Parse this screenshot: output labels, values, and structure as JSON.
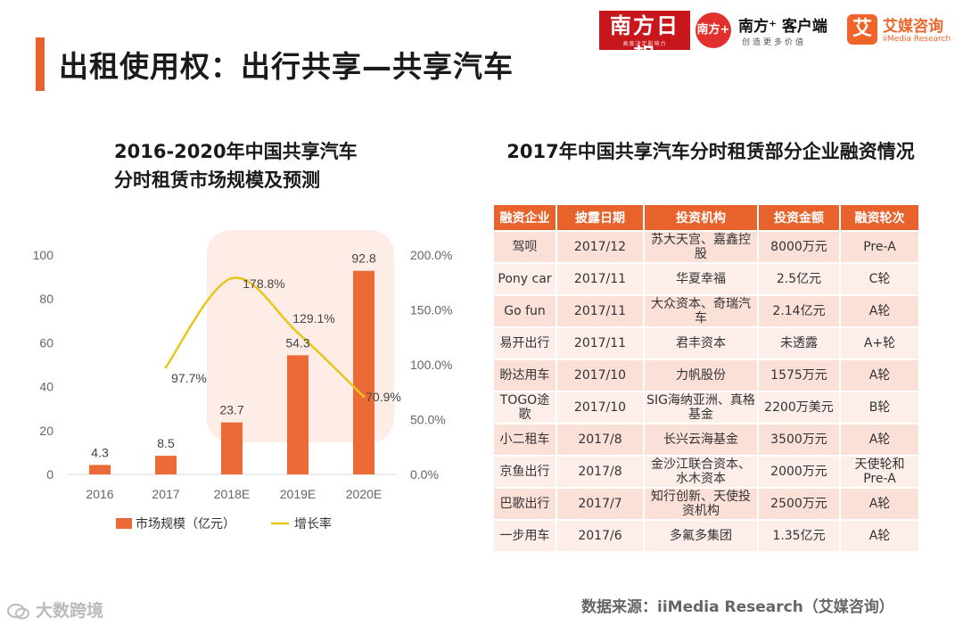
{
  "header": {
    "title": "出租使用权：出行共享—共享汽车"
  },
  "logos": {
    "nanfang_daily": "南方日報",
    "nanfang_daily_sub": "高度决定影响力",
    "nanfang_circle": "南方+",
    "nanfang_plus": "南方⁺ 客户端",
    "nanfang_plus_sub": "创造更多价值",
    "ai_badge": "艾",
    "ai_cn": "艾媒咨询",
    "ai_en": "iiMedia Research"
  },
  "chart": {
    "title_line1": "2016-2020年中国共享汽车",
    "title_line2": "分时租赁市场规模及预测"
  },
  "chart_data": {
    "type": "bar",
    "title": "2016-2020年中国共享汽车分时租赁市场规模及预测",
    "categories": [
      "2016",
      "2017",
      "2018E",
      "2019E",
      "2020E"
    ],
    "series": [
      {
        "name": "市场规模（亿元）",
        "type": "bar",
        "axis": "left",
        "values": [
          4.3,
          8.5,
          23.7,
          54.3,
          92.8
        ],
        "labels": [
          "4.3",
          "8.5",
          "23.7",
          "54.3",
          "92.8"
        ]
      },
      {
        "name": "增长率",
        "type": "line",
        "axis": "right",
        "values": [
          null,
          97.7,
          178.8,
          129.1,
          70.9
        ],
        "labels": [
          "",
          "97.7%",
          "178.8%",
          "129.1%",
          "70.9%"
        ]
      }
    ],
    "y_left": {
      "ticks": [
        "0",
        "20",
        "40",
        "60",
        "80",
        "100"
      ],
      "range": [
        0,
        100
      ]
    },
    "y_right": {
      "ticks": [
        "0.0%",
        "50.0%",
        "100.0%",
        "150.0%",
        "200.0%"
      ],
      "range": [
        0,
        200
      ]
    },
    "legend": [
      "市场规模（亿元）",
      "增长率"
    ],
    "colors": {
      "bar": "#ec6a35",
      "line": "#e8c61a"
    }
  },
  "table": {
    "title": "2017年中国共享汽车分时租赁部分企业融资情况",
    "headers": [
      "融资企业",
      "披露日期",
      "投资机构",
      "投资金额",
      "融资轮次"
    ],
    "rows": [
      [
        "驾呗",
        "2017/12",
        "苏大天宫、嘉鑫控股",
        "8000万元",
        "Pre-A"
      ],
      [
        "Pony car",
        "2017/11",
        "华夏幸福",
        "2.5亿元",
        "C轮"
      ],
      [
        "Go fun",
        "2017/11",
        "大众资本、奇瑞汽车",
        "2.14亿元",
        "A轮"
      ],
      [
        "易开出行",
        "2017/11",
        "君丰资本",
        "未透露",
        "A+轮"
      ],
      [
        "盼达用车",
        "2017/10",
        "力帆股份",
        "1575万元",
        "A轮"
      ],
      [
        "TOGO途歌",
        "2017/10",
        "SIG海纳亚洲、真格基金",
        "2200万美元",
        "B轮"
      ],
      [
        "小二租车",
        "2017/8",
        "长兴云海基金",
        "3500万元",
        "A轮"
      ],
      [
        "京鱼出行",
        "2017/8",
        "金沙江联合资本、水木资本",
        "2000万元",
        "天使轮和Pre-A"
      ],
      [
        "巴歌出行",
        "2017/7",
        "知行创新、天使投资机构",
        "2500万元",
        "A轮"
      ],
      [
        "一步用车",
        "2017/6",
        "多氟多集团",
        "1.35亿元",
        "A轮"
      ]
    ]
  },
  "footer": {
    "source": "数据来源：iiMedia Research（艾媒咨询）",
    "watermark": "大数跨境"
  },
  "colors": {
    "accent": "#e8622c"
  }
}
